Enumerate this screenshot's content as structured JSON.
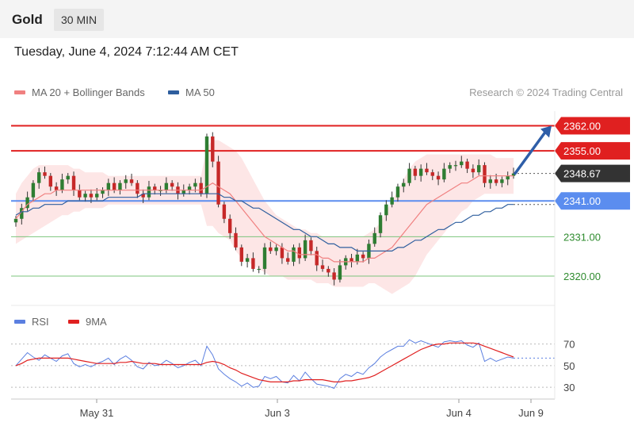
{
  "header": {
    "symbol": "Gold",
    "timeframe": "30 MIN"
  },
  "timestamp": "Tuesday, June 4, 2024 7:12:44 AM CET",
  "legend": {
    "ma20_label": "MA 20 + Bollinger Bands",
    "ma50_label": "MA 50",
    "credit": "Research © 2024 Trading Central",
    "rsi_label": "RSI",
    "rsi_ma_label": "9MA"
  },
  "colors": {
    "ma20": "#f08080",
    "ma50": "#2e5e9e",
    "band": "#fde0e0",
    "resistance": "#e02020",
    "pivot": "#5b8def",
    "support": "#7cc47c",
    "rsi": "#5b7fe0",
    "rsi_ma": "#e02020",
    "arrow": "#2e5ea8"
  },
  "chart_data": [
    {
      "type": "candlestick",
      "x_labels": [
        "May 31",
        "Jun 3",
        "Jun 4",
        "Jun 9"
      ],
      "ylim": [
        2314,
        2365
      ],
      "levels": [
        {
          "label": "2362.00",
          "value": 2362.0,
          "kind": "resistance"
        },
        {
          "label": "2355.00",
          "value": 2355.0,
          "kind": "resistance"
        },
        {
          "label": "2348.67",
          "value": 2348.67,
          "kind": "last"
        },
        {
          "label": "2341.00",
          "value": 2341.0,
          "kind": "pivot"
        },
        {
          "label": "2331.00",
          "value": 2331.0,
          "kind": "support"
        },
        {
          "label": "2320.00",
          "value": 2320.0,
          "kind": "support"
        }
      ],
      "close": [
        2336,
        2339,
        2342,
        2346,
        2349,
        2348,
        2345,
        2344,
        2347,
        2348,
        2344,
        2342,
        2343,
        2342,
        2343,
        2344,
        2346,
        2344,
        2346,
        2347,
        2346,
        2343,
        2342,
        2345,
        2344,
        2344,
        2346,
        2345,
        2343,
        2344,
        2345,
        2346,
        2343,
        2359,
        2352,
        2340,
        2336,
        2332,
        2328,
        2324,
        2325,
        2322,
        2322,
        2328,
        2327,
        2328,
        2325,
        2324,
        2328,
        2325,
        2330,
        2327,
        2323,
        2322,
        2321,
        2319,
        2323,
        2325,
        2324,
        2326,
        2325,
        2329,
        2332,
        2337,
        2340,
        2342,
        2345,
        2346,
        2350,
        2348,
        2350,
        2349,
        2348,
        2347,
        2350,
        2351,
        2351,
        2352,
        2350,
        2349,
        2351,
        2346,
        2347,
        2346,
        2347,
        2348,
        2348.67
      ],
      "ma20": [
        2336,
        2338,
        2340,
        2341,
        2342,
        2343,
        2343,
        2344,
        2344,
        2344,
        2344,
        2344,
        2344,
        2344,
        2344,
        2344,
        2344,
        2344,
        2344,
        2344,
        2344,
        2344,
        2344,
        2344,
        2344,
        2344,
        2344,
        2344,
        2344,
        2344,
        2344,
        2344,
        2344,
        2345,
        2346,
        2345,
        2344,
        2343,
        2341,
        2339,
        2337,
        2335,
        2333,
        2331,
        2330,
        2329,
        2328,
        2327,
        2327,
        2326,
        2326,
        2326,
        2326,
        2325,
        2325,
        2324,
        2324,
        2324,
        2324,
        2324,
        2324,
        2325,
        2325,
        2326,
        2327,
        2328,
        2330,
        2332,
        2334,
        2336,
        2338,
        2340,
        2341,
        2342,
        2343,
        2344,
        2345,
        2346,
        2346,
        2347,
        2348,
        2348,
        2348,
        2348,
        2348,
        2348,
        2348
      ],
      "ma50": [
        2337,
        2338,
        2338,
        2339,
        2339,
        2340,
        2340,
        2340,
        2340,
        2341,
        2341,
        2341,
        2341,
        2341,
        2341,
        2341,
        2342,
        2342,
        2342,
        2342,
        2342,
        2342,
        2343,
        2343,
        2343,
        2343,
        2343,
        2343,
        2343,
        2343,
        2343,
        2343,
        2343,
        2343,
        2343,
        2343,
        2342,
        2342,
        2341,
        2341,
        2340,
        2339,
        2339,
        2338,
        2337,
        2336,
        2335,
        2334,
        2333,
        2333,
        2332,
        2331,
        2331,
        2330,
        2329,
        2329,
        2328,
        2328,
        2328,
        2327,
        2327,
        2327,
        2327,
        2327,
        2327,
        2327,
        2328,
        2328,
        2329,
        2330,
        2330,
        2331,
        2332,
        2333,
        2333,
        2334,
        2335,
        2335,
        2336,
        2337,
        2337,
        2338,
        2338,
        2339,
        2339,
        2340,
        2340
      ],
      "bb_upper": [
        2343,
        2346,
        2348,
        2350,
        2351,
        2351,
        2351,
        2351,
        2351,
        2351,
        2350,
        2350,
        2349,
        2349,
        2349,
        2349,
        2348,
        2348,
        2348,
        2348,
        2348,
        2348,
        2348,
        2348,
        2348,
        2348,
        2348,
        2348,
        2348,
        2348,
        2348,
        2348,
        2348,
        2356,
        2358,
        2358,
        2357,
        2356,
        2355,
        2353,
        2350,
        2347,
        2344,
        2341,
        2339,
        2337,
        2336,
        2335,
        2334,
        2333,
        2333,
        2332,
        2332,
        2331,
        2331,
        2331,
        2331,
        2331,
        2331,
        2331,
        2331,
        2332,
        2333,
        2335,
        2338,
        2341,
        2344,
        2347,
        2350,
        2352,
        2353,
        2354,
        2354,
        2354,
        2354,
        2354,
        2354,
        2354,
        2354,
        2354,
        2354,
        2354,
        2354,
        2353,
        2353,
        2353,
        2353
      ],
      "bb_lower": [
        2329,
        2330,
        2331,
        2332,
        2333,
        2334,
        2335,
        2336,
        2337,
        2337,
        2338,
        2338,
        2339,
        2339,
        2339,
        2339,
        2340,
        2340,
        2340,
        2340,
        2340,
        2340,
        2340,
        2340,
        2340,
        2340,
        2340,
        2340,
        2340,
        2340,
        2340,
        2340,
        2340,
        2334,
        2334,
        2332,
        2331,
        2330,
        2327,
        2325,
        2324,
        2323,
        2322,
        2321,
        2320,
        2320,
        2320,
        2319,
        2319,
        2319,
        2319,
        2319,
        2318,
        2318,
        2318,
        2317,
        2317,
        2317,
        2317,
        2317,
        2317,
        2318,
        2318,
        2317,
        2316,
        2315,
        2316,
        2317,
        2318,
        2320,
        2323,
        2326,
        2328,
        2330,
        2332,
        2334,
        2336,
        2338,
        2339,
        2341,
        2342,
        2343,
        2343,
        2343,
        2343,
        2343,
        2343
      ],
      "forecast_target": 2362.0
    },
    {
      "type": "line",
      "name": "RSI",
      "yticks": [
        30,
        50,
        70
      ],
      "ylim": [
        25,
        80
      ],
      "rsi": [
        50,
        56,
        62,
        58,
        55,
        60,
        57,
        54,
        59,
        61,
        52,
        49,
        51,
        49,
        52,
        54,
        57,
        51,
        56,
        59,
        55,
        49,
        47,
        53,
        50,
        51,
        55,
        52,
        48,
        50,
        53,
        55,
        50,
        68,
        60,
        47,
        42,
        38,
        35,
        31,
        34,
        30,
        31,
        40,
        38,
        40,
        35,
        34,
        41,
        36,
        44,
        38,
        33,
        32,
        31,
        29,
        38,
        42,
        40,
        44,
        42,
        48,
        52,
        58,
        62,
        65,
        68,
        68,
        74,
        71,
        73,
        71,
        69,
        67,
        72,
        73,
        72,
        73,
        69,
        67,
        71,
        54,
        57,
        54,
        56,
        58,
        57
      ],
      "rsi_ma": [
        50,
        52,
        55,
        56,
        57,
        57,
        57,
        57,
        57,
        57,
        56,
        55,
        54,
        53,
        52,
        52,
        52,
        52,
        53,
        53,
        54,
        53,
        52,
        52,
        52,
        51,
        51,
        51,
        51,
        51,
        51,
        51,
        51,
        53,
        54,
        53,
        51,
        48,
        46,
        43,
        41,
        39,
        37,
        36,
        35,
        35,
        35,
        35,
        36,
        36,
        37,
        37,
        37,
        37,
        36,
        35,
        35,
        36,
        36,
        37,
        38,
        39,
        41,
        44,
        47,
        50,
        53,
        56,
        59,
        62,
        65,
        67,
        69,
        70,
        70,
        71,
        71,
        71,
        71,
        71,
        70,
        68,
        66,
        64,
        62,
        60,
        58
      ]
    }
  ]
}
